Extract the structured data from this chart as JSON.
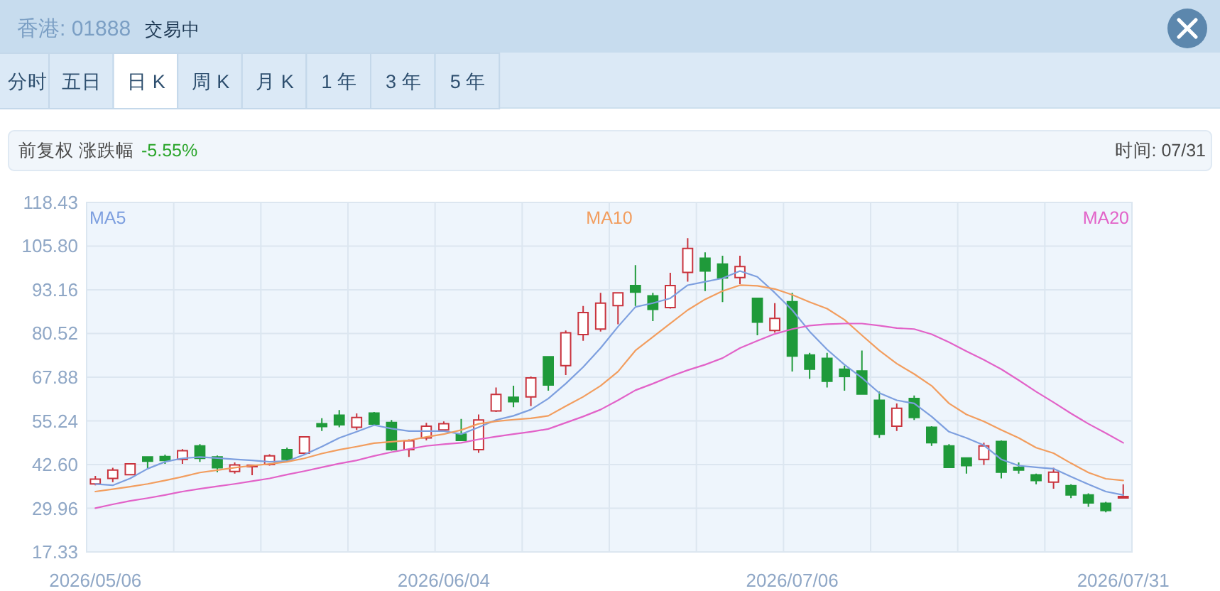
{
  "chart_data": {
    "type": "candlestick",
    "title": "香港: 01888",
    "subtitle": "交易中",
    "annotations": [
      "分时",
      "五日",
      "日 K",
      "周 K",
      "月 K",
      "1 年",
      "3 年",
      "5 年",
      "前复权 涨跌幅",
      "-5.55%",
      "时间: 07/31"
    ],
    "categories": [
      "2026/05/06",
      null,
      null,
      null,
      null,
      null,
      null,
      null,
      null,
      null,
      null,
      null,
      null,
      null,
      null,
      null,
      null,
      null,
      null,
      null,
      "2026/06/04",
      null,
      null,
      null,
      null,
      null,
      null,
      null,
      null,
      null,
      null,
      null,
      null,
      null,
      null,
      null,
      null,
      null,
      null,
      null,
      "2026/07/06",
      null,
      null,
      null,
      null,
      null,
      null,
      null,
      null,
      null,
      null,
      null,
      null,
      null,
      null,
      null,
      null,
      null,
      null,
      "2026/07/31"
    ],
    "ohlc": [
      [
        37.0,
        39.3,
        36.6,
        38.4
      ],
      [
        38.6,
        41.7,
        37.5,
        41.0
      ],
      [
        39.7,
        43.0,
        39.6,
        42.8
      ],
      [
        44.8,
        45.0,
        41.4,
        43.6
      ],
      [
        44.9,
        45.5,
        42.8,
        43.8
      ],
      [
        44.1,
        47.1,
        42.8,
        46.6
      ],
      [
        48.0,
        48.5,
        43.4,
        44.4
      ],
      [
        44.8,
        45.2,
        40.4,
        41.7
      ],
      [
        40.6,
        43.2,
        40.0,
        42.5
      ],
      [
        42.1,
        42.4,
        39.5,
        42.3
      ],
      [
        42.6,
        45.6,
        42.3,
        45.1
      ],
      [
        46.9,
        47.5,
        43.7,
        44.1
      ],
      [
        45.9,
        50.8,
        45.5,
        50.6
      ],
      [
        54.4,
        56.0,
        52.3,
        53.6
      ],
      [
        56.9,
        58.4,
        53.4,
        54.1
      ],
      [
        53.4,
        57.4,
        52.6,
        56.2
      ],
      [
        57.5,
        57.8,
        54.0,
        54.3
      ],
      [
        54.8,
        55.5,
        46.6,
        46.9
      ],
      [
        46.9,
        49.9,
        44.8,
        49.5
      ],
      [
        50.3,
        54.7,
        49.6,
        53.7
      ],
      [
        52.6,
        55.1,
        52.1,
        54.4
      ],
      [
        51.4,
        55.8,
        49.5,
        49.6
      ],
      [
        46.9,
        57.1,
        46.0,
        55.5
      ],
      [
        58.1,
        64.9,
        57.8,
        62.9
      ],
      [
        62.1,
        65.4,
        59.2,
        60.8
      ],
      [
        62.2,
        68.1,
        59.5,
        67.7
      ],
      [
        73.8,
        74.0,
        64.0,
        65.6
      ],
      [
        71.2,
        81.4,
        68.5,
        80.7
      ],
      [
        80.2,
        88.5,
        78.4,
        86.6
      ],
      [
        81.8,
        92.3,
        81.1,
        89.3
      ],
      [
        88.6,
        92.5,
        83.2,
        92.3
      ],
      [
        94.4,
        100.3,
        88.5,
        92.5
      ],
      [
        91.4,
        92.3,
        84.1,
        87.5
      ],
      [
        88.0,
        98.1,
        87.7,
        94.4
      ],
      [
        98.2,
        108.1,
        95.5,
        105.1
      ],
      [
        102.3,
        104.0,
        92.8,
        98.6
      ],
      [
        100.6,
        103.0,
        89.6,
        96.6
      ],
      [
        96.7,
        103.0,
        94.8,
        99.9
      ],
      [
        90.7,
        90.7,
        80.0,
        83.8
      ],
      [
        81.4,
        89.3,
        80.8,
        84.9
      ],
      [
        89.7,
        92.3,
        69.5,
        74.0
      ],
      [
        74.3,
        74.9,
        67.4,
        70.2
      ],
      [
        73.3,
        74.9,
        64.9,
        66.7
      ],
      [
        70.2,
        71.2,
        64.0,
        68.1
      ],
      [
        69.7,
        75.6,
        62.9,
        63.0
      ],
      [
        61.2,
        63.7,
        50.3,
        51.4
      ],
      [
        53.7,
        60.3,
        52.3,
        58.9
      ],
      [
        61.7,
        62.6,
        55.5,
        56.2
      ],
      [
        53.4,
        53.7,
        48.0,
        48.9
      ],
      [
        48.0,
        48.5,
        41.7,
        41.8
      ],
      [
        44.5,
        44.7,
        40.0,
        42.3
      ],
      [
        44.1,
        48.9,
        42.5,
        48.0
      ],
      [
        49.3,
        49.6,
        38.6,
        40.4
      ],
      [
        41.8,
        43.2,
        40.0,
        41.0
      ],
      [
        39.6,
        40.0,
        36.9,
        38.0
      ],
      [
        37.5,
        41.7,
        35.6,
        40.4
      ],
      [
        36.5,
        36.9,
        32.9,
        33.8
      ],
      [
        33.8,
        34.3,
        30.4,
        31.5
      ],
      [
        31.4,
        31.8,
        28.8,
        29.3
      ],
      [
        33.1,
        36.9,
        33.1,
        33.2
      ]
    ],
    "colors": [
      "#c9333d",
      "#c9333d",
      "#c9333d",
      "#1f9a3a",
      "#1f9a3a",
      "#c9333d",
      "#1f9a3a",
      "#1f9a3a",
      "#c9333d",
      "#c9333d",
      "#c9333d",
      "#1f9a3a",
      "#c9333d",
      "#1f9a3a",
      "#1f9a3a",
      "#c9333d",
      "#1f9a3a",
      "#1f9a3a",
      "#c9333d",
      "#c9333d",
      "#c9333d",
      "#1f9a3a",
      "#c9333d",
      "#c9333d",
      "#1f9a3a",
      "#c9333d",
      "#1f9a3a",
      "#c9333d",
      "#c9333d",
      "#c9333d",
      "#c9333d",
      "#1f9a3a",
      "#1f9a3a",
      "#c9333d",
      "#c9333d",
      "#1f9a3a",
      "#1f9a3a",
      "#c9333d",
      "#1f9a3a",
      "#c9333d",
      "#1f9a3a",
      "#1f9a3a",
      "#1f9a3a",
      "#1f9a3a",
      "#1f9a3a",
      "#1f9a3a",
      "#c9333d",
      "#1f9a3a",
      "#1f9a3a",
      "#1f9a3a",
      "#1f9a3a",
      "#c9333d",
      "#1f9a3a",
      "#1f9a3a",
      "#1f9a3a",
      "#c9333d",
      "#1f9a3a",
      "#1f9a3a",
      "#1f9a3a",
      "#c9333d"
    ],
    "series": [
      {
        "name": "MA5",
        "type": "line",
        "color": "#7d9fdf",
        "values": [
          37.0,
          36.6,
          38.6,
          41.4,
          43.4,
          44.4,
          44.8,
          44.5,
          44.1,
          43.8,
          43.4,
          43.6,
          45.5,
          47.8,
          50.3,
          52.1,
          54.0,
          53.0,
          52.3,
          52.3,
          52.3,
          51.4,
          53.4,
          55.5,
          56.7,
          58.5,
          61.7,
          66.0,
          70.8,
          76.3,
          82.5,
          88.2,
          89.3,
          90.7,
          94.5,
          95.5,
          96.5,
          98.6,
          96.9,
          92.3,
          87.3,
          81.1,
          75.9,
          71.5,
          67.7,
          63.3,
          61.2,
          60.3,
          56.5,
          52.1,
          50.3,
          48.2,
          44.1,
          42.3,
          41.8,
          41.4,
          39.1,
          36.9,
          34.8,
          33.8
        ]
      },
      {
        "name": "MA10",
        "type": "line",
        "color": "#f29d5e",
        "values": [
          34.8,
          35.5,
          36.2,
          37.0,
          38.0,
          39.1,
          40.3,
          41.0,
          41.7,
          42.3,
          42.8,
          43.4,
          44.4,
          45.8,
          46.9,
          47.8,
          48.8,
          49.2,
          49.6,
          50.6,
          51.4,
          52.6,
          54.4,
          55.1,
          55.6,
          56.0,
          56.7,
          59.5,
          62.2,
          65.4,
          69.5,
          75.6,
          79.5,
          83.4,
          87.3,
          90.4,
          92.8,
          94.5,
          94.3,
          93.4,
          91.7,
          89.6,
          87.7,
          84.5,
          80.0,
          75.6,
          71.8,
          68.8,
          65.4,
          60.3,
          57.1,
          55.1,
          52.6,
          50.3,
          47.5,
          45.9,
          43.0,
          40.3,
          38.5,
          38.0
        ]
      },
      {
        "name": "MA20",
        "type": "line",
        "color": "#e262c8",
        "values": [
          30.0,
          31.1,
          32.1,
          32.9,
          33.8,
          34.8,
          35.6,
          36.3,
          37.0,
          37.8,
          38.6,
          39.7,
          40.7,
          41.8,
          42.9,
          43.8,
          45.1,
          46.2,
          47.1,
          48.0,
          48.5,
          48.9,
          49.9,
          50.7,
          51.4,
          52.1,
          52.9,
          54.7,
          56.5,
          58.5,
          61.2,
          64.1,
          66.0,
          68.1,
          69.9,
          71.5,
          73.4,
          76.3,
          78.4,
          80.4,
          81.8,
          82.8,
          83.2,
          83.4,
          83.4,
          82.8,
          82.1,
          81.8,
          80.3,
          78.0,
          75.4,
          72.9,
          70.2,
          67.0,
          63.7,
          60.6,
          57.4,
          54.4,
          51.7,
          48.9
        ]
      }
    ],
    "ylim": [
      17.33,
      118.43
    ],
    "yticks": [
      118.43,
      {
        "value": 105.8,
        "label": "105.80"
      },
      93.16,
      80.52,
      67.88,
      55.24,
      {
        "value": 42.6,
        "label": "42.60"
      },
      29.96,
      17.33
    ],
    "grid": true,
    "legend": "top"
  }
}
